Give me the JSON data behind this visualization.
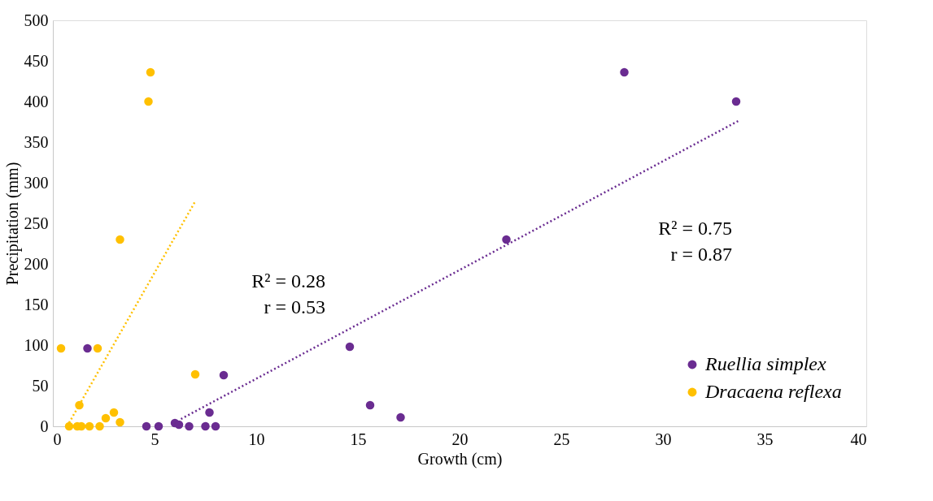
{
  "chart_data": {
    "type": "scatter",
    "xlabel": "Growth (cm)",
    "ylabel": "Precipitation (mm)",
    "xlim": [
      0,
      40
    ],
    "xticks": [
      0,
      5,
      10,
      15,
      20,
      25,
      30,
      35,
      40
    ],
    "ylim": [
      0,
      500
    ],
    "yticks": [
      0,
      50,
      100,
      150,
      200,
      250,
      300,
      350,
      400,
      450,
      500
    ],
    "grid": false,
    "legend": "bottom right",
    "marker": "circle",
    "annotations": [
      "R² = 0.28\nr = 0.53",
      "R² = 0.75\nr = 0.87"
    ],
    "series": [
      {
        "name": "Ruellia simplex",
        "color": "#6a2c91",
        "x": [
          4.6,
          5.2,
          6.0,
          6.2,
          6.7,
          7.5,
          8.0,
          7.7,
          8.4,
          1.7,
          14.6,
          15.6,
          17.1,
          22.3,
          28.1,
          33.6
        ],
        "values": [
          0,
          0,
          4,
          2,
          0,
          0,
          0,
          17,
          63,
          96,
          98,
          26,
          11,
          230,
          436,
          400
        ]
      },
      {
        "name": "Dracaena reflexa",
        "color": "#ffc000",
        "x": [
          0.4,
          2.2,
          0.8,
          1.2,
          1.4,
          1.8,
          2.3,
          1.3,
          2.6,
          3.0,
          3.3,
          7.0,
          3.3,
          4.7,
          4.8
        ],
        "values": [
          96,
          96,
          0,
          0,
          0,
          0,
          0,
          26,
          10,
          17,
          5,
          64,
          230,
          400,
          436
        ]
      },
      {
        "type": "line",
        "color": "#ffc000",
        "line_style": "dotted",
        "marker": "none",
        "x": [
          0.7,
          7.0
        ],
        "values": [
          0,
          277
        ]
      },
      {
        "type": "line",
        "color": "#6a2c91",
        "line_style": "dotted",
        "marker": "none",
        "x": [
          6.3,
          33.7
        ],
        "values": [
          9,
          376
        ]
      }
    ]
  }
}
